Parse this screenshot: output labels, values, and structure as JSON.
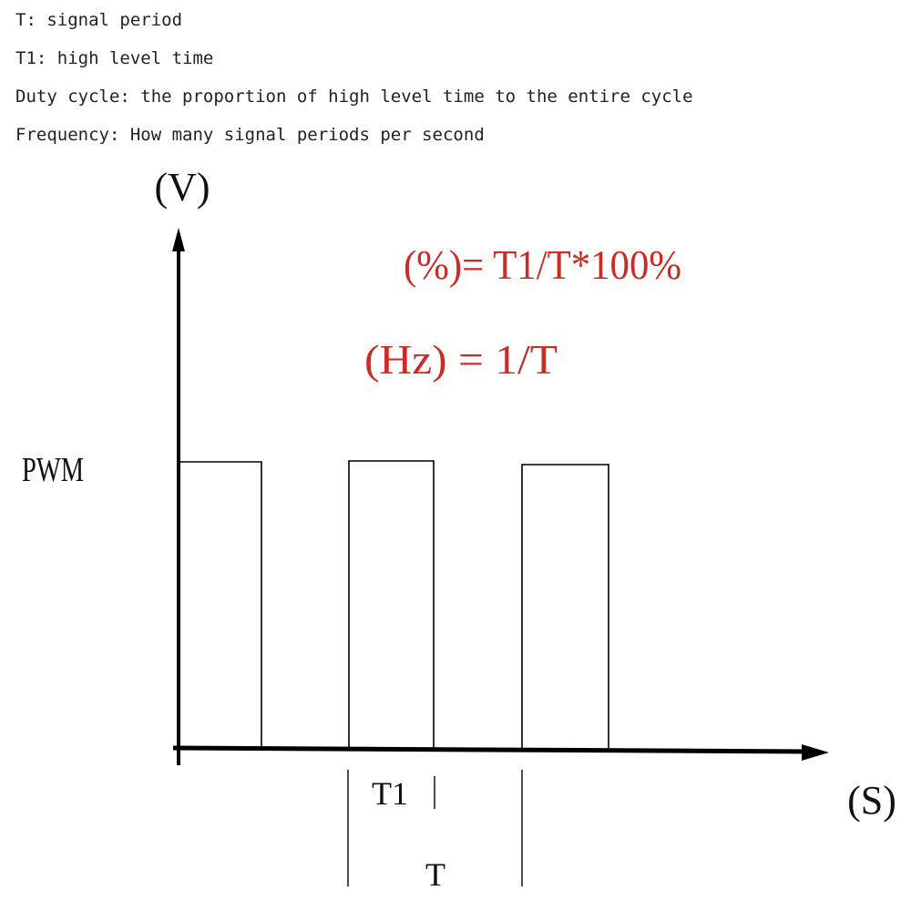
{
  "definitions": [
    "T: signal period",
    "T1: high level time",
    "Duty cycle: the proportion of high level time to the entire cycle",
    "Frequency: How many signal periods per second"
  ],
  "diagram": {
    "y_axis_label": "(V)",
    "x_axis_label": "(S)",
    "signal_label": "PWM",
    "duty_formula": "(%)= T1/T*100%",
    "frequency_formula": "(Hz) = 1/T",
    "high_time_label": "T1",
    "period_label": "T",
    "formula_color": "#cc2a24",
    "line_color": "#000000"
  }
}
